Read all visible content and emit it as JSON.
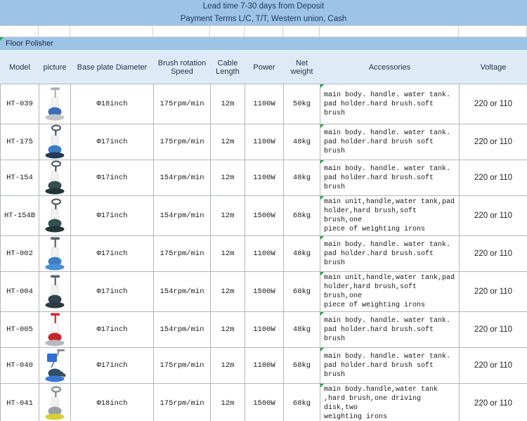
{
  "banner": {
    "line1": "Lead time 7-30 days from Deposit",
    "line2": "Payment Terms L/C, T/T, Western union, Cash"
  },
  "section": {
    "title": "Floor Polisher"
  },
  "colors": {
    "banner_bg": "#9dc3e6",
    "header_bg": "#deebf7",
    "banner_text": "#1f3864",
    "grid_line": "#b2b6ba",
    "flag_green": "#1da53f"
  },
  "table": {
    "columns": [
      "Model",
      "picture",
      "Base plate Diameter",
      "Brush rotation Speed",
      "Cable Length",
      "Power",
      "Net weight",
      "Accessories",
      "Voltage"
    ],
    "rows": [
      {
        "model": "HT-039",
        "diameter": "Φ18inch",
        "speed": "175rpm/min",
        "cable": "12m",
        "power": "1100W",
        "weight": "50kg",
        "accessories": "main body. handle. water tank.\npad holder.hard brush.soft brush",
        "voltage": "220 or 110",
        "picture": {
          "name": "floor-polisher-photo",
          "variant": "t",
          "handle": "#a9adb3",
          "body": "#f5f5f3",
          "head": "#3e6db5",
          "base": "#c2c6ca",
          "accent": "#3e6db5"
        }
      },
      {
        "model": "HT-175",
        "diameter": "Φ17inch",
        "speed": "175rpm/min",
        "cable": "12m",
        "power": "1100W",
        "weight": "48kg",
        "accessories": "main body. handle. water tank.\npad holder.hard brush soft brush",
        "voltage": "220 or 110",
        "picture": {
          "name": "floor-polisher-photo",
          "variant": "loop",
          "handle": "#4a525a",
          "body": "#f2f2f0",
          "head": "#3a7bc2",
          "base": "#243a55",
          "accent": "#3a7bc2"
        }
      },
      {
        "model": "HT-154",
        "diameter": "Φ17inch",
        "speed": "154rpm/min",
        "cable": "12m",
        "power": "1100W",
        "weight": "48kg",
        "accessories": "main body. handle. water tank.\npad holder.hard brush.soft brush",
        "voltage": "220 or 110",
        "picture": {
          "name": "floor-polisher-photo",
          "variant": "loop",
          "handle": "#4a525a",
          "body": "#f2f2f0",
          "head": "#35504f",
          "base": "#223638",
          "accent": "#35504f"
        }
      },
      {
        "model": "HT-154B",
        "diameter": "Φ17inch",
        "speed": "154rpm/min",
        "cable": "12m",
        "power": "1500W",
        "weight": "68kg",
        "accessories": "main unit,handle,water tank,pad\nholder,hard brush,soft brush,one\npiece of weighting irons",
        "voltage": "220 or 110",
        "picture": {
          "name": "floor-polisher-photo",
          "variant": "loop",
          "handle": "#4a525a",
          "body": "#f2f2f0",
          "head": "#35504f",
          "base": "#223638",
          "accent": "#35504f"
        }
      },
      {
        "model": "HT-002",
        "diameter": "Φ17inch",
        "speed": "175rpm/min",
        "cable": "12m",
        "power": "1100W",
        "weight": "48kg",
        "accessories": "main body. handle. water tank.\npad holder.hard brush.soft brush",
        "voltage": "220 or 110",
        "picture": {
          "name": "floor-polisher-photo",
          "variant": "t",
          "handle": "#5a6168",
          "body": "#f2f2f0",
          "head": "#3f7fc1",
          "base": "#4a90d9",
          "accent": "#3f7fc1"
        }
      },
      {
        "model": "HT-004",
        "diameter": "Φ17inch",
        "speed": "154rpm/min",
        "cable": "12m",
        "power": "1500W",
        "weight": "68kg",
        "accessories": "main unit,handle,water tank,pad\nholder,hard brush,soft brush,one\npiece of weighting irons",
        "voltage": "220 or 110",
        "picture": {
          "name": "floor-polisher-photo",
          "variant": "t",
          "handle": "#5a6168",
          "body": "#f2f2f0",
          "head": "#31434c",
          "base": "#2c3b42",
          "accent": "#31434c"
        }
      },
      {
        "model": "HT-005",
        "diameter": "Φ17inch",
        "speed": "154rpm/min",
        "cable": "12m",
        "power": "1100W",
        "weight": "48kg",
        "accessories": "main body. handle. water tank.\npad holder.hard brush.soft brush",
        "voltage": "220 or 110",
        "picture": {
          "name": "floor-polisher-photo",
          "variant": "t",
          "handle": "#cf2a28",
          "body": "#fafafa",
          "head": "#c9252b",
          "base": "#b6babe",
          "accent": "#c9252b"
        }
      },
      {
        "model": "HT-040",
        "diameter": "Φ17inch",
        "speed": "175rpm/min",
        "cable": "12m",
        "power": "1100W",
        "weight": "68kg",
        "accessories": "main body. handle. water tank.\npad holder.hard brush soft brush",
        "voltage": "220 or 110",
        "picture": {
          "name": "floor-polisher-photo",
          "variant": "cart",
          "handle": "#7f868d",
          "body": "#f2f2f0",
          "head": "#2f4f68",
          "base": "#3a77d4",
          "accent": "#2f6fd1"
        }
      },
      {
        "model": "HT-041",
        "diameter": "Φ18inch",
        "speed": "175rpm/min",
        "cable": "12m",
        "power": "1500W",
        "weight": "68kg",
        "accessories": "main body.handle,water tank\n,hard brush,one driving disk,two\nweighting irons",
        "voltage": "220 or 110",
        "picture": {
          "name": "floor-polisher-photo",
          "variant": "loop",
          "handle": "#7d848b",
          "body": "#f2f2f0",
          "head": "#9aa0a6",
          "base": "#d7ce3a",
          "accent": "#9aa0a6"
        }
      }
    ]
  }
}
